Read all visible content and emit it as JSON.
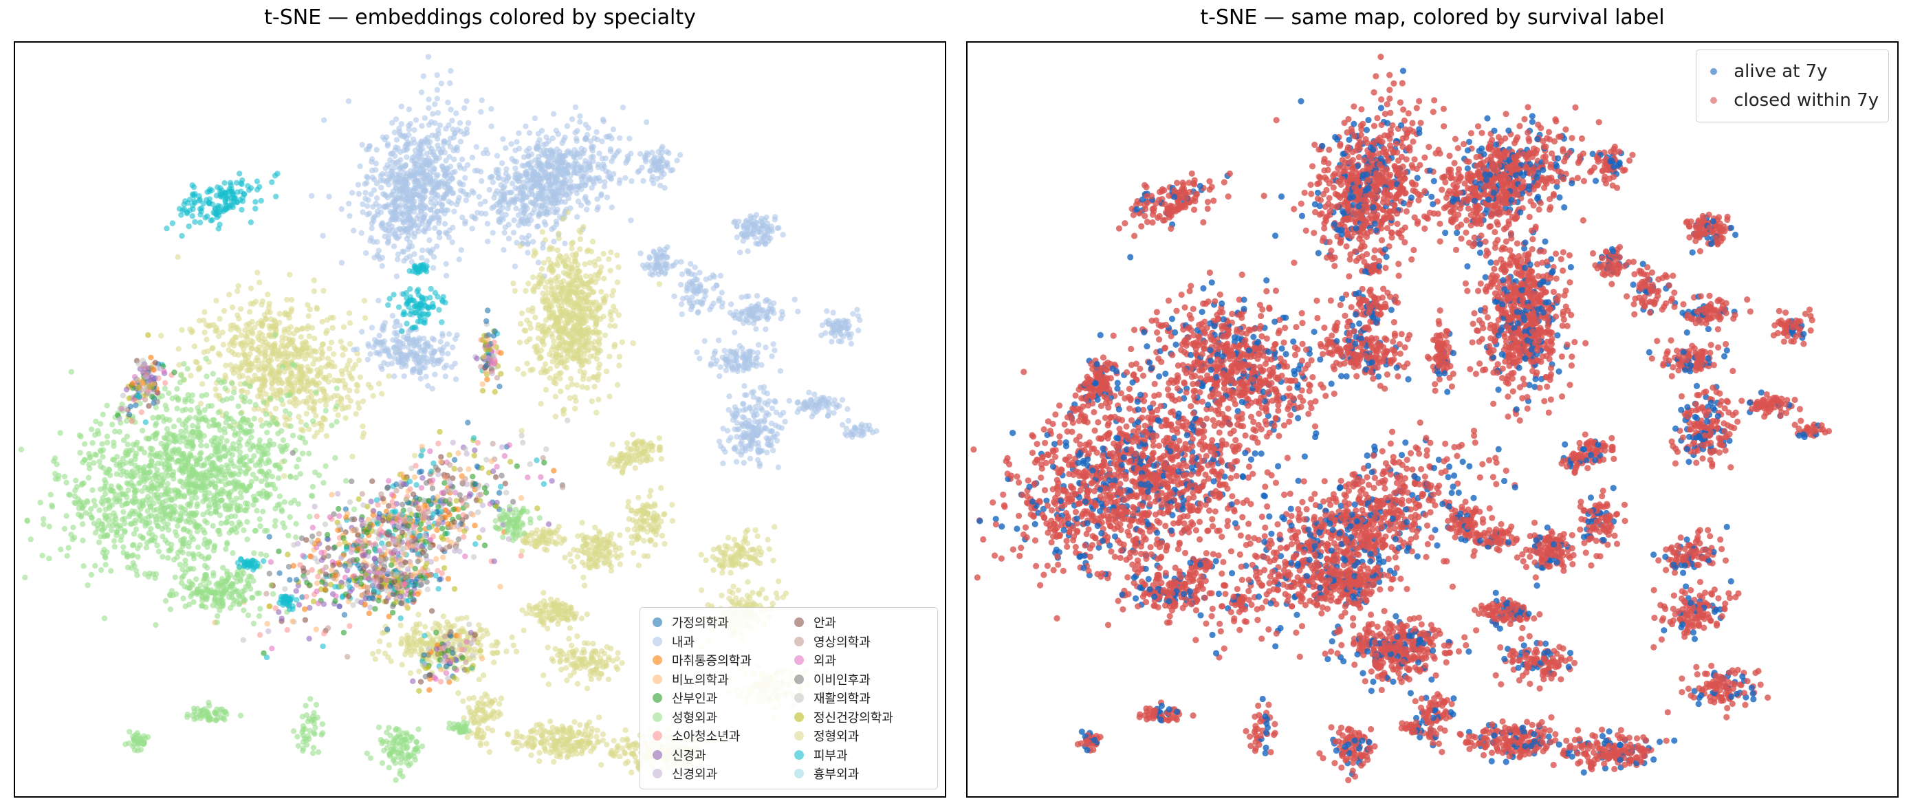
{
  "chart_data": [
    {
      "type": "scatter",
      "title": "t-SNE — embeddings colored by specialty",
      "xlabel": "",
      "ylabel": "",
      "axes_visible": false,
      "legend_placement": "lower-right",
      "legend_columns": 2,
      "series": [
        {
          "name": "가정의학과",
          "color": "#1f77b4"
        },
        {
          "name": "내과",
          "color": "#aec7e8"
        },
        {
          "name": "마취통증의학과",
          "color": "#ff7f0e"
        },
        {
          "name": "비뇨의학과",
          "color": "#ffbb78"
        },
        {
          "name": "산부인과",
          "color": "#2ca02c"
        },
        {
          "name": "성형외과",
          "color": "#98df8a"
        },
        {
          "name": "소아청소년과",
          "color": "#ff9896"
        },
        {
          "name": "신경과",
          "color": "#9467bd"
        },
        {
          "name": "신경외과",
          "color": "#c5b0d5"
        },
        {
          "name": "안과",
          "color": "#8c564b"
        },
        {
          "name": "영상의학과",
          "color": "#c49c94"
        },
        {
          "name": "외과",
          "color": "#e377c2"
        },
        {
          "name": "이비인후과",
          "color": "#7f7f7f"
        },
        {
          "name": "재활의학과",
          "color": "#c7c7c7"
        },
        {
          "name": "정신건강의학과",
          "color": "#bcbd22"
        },
        {
          "name": "정형외과",
          "color": "#dbdb8d"
        },
        {
          "name": "피부과",
          "color": "#17becf"
        },
        {
          "name": "흉부외과",
          "color": "#9edae5"
        }
      ]
    },
    {
      "type": "scatter",
      "title": "t-SNE — same map, colored by survival label",
      "xlabel": "",
      "ylabel": "",
      "axes_visible": false,
      "legend_placement": "upper-right",
      "series": [
        {
          "name": "alive at 7y",
          "color": "#1565c0"
        },
        {
          "name": "closed within 7y",
          "color": "#d9534f"
        }
      ]
    }
  ]
}
